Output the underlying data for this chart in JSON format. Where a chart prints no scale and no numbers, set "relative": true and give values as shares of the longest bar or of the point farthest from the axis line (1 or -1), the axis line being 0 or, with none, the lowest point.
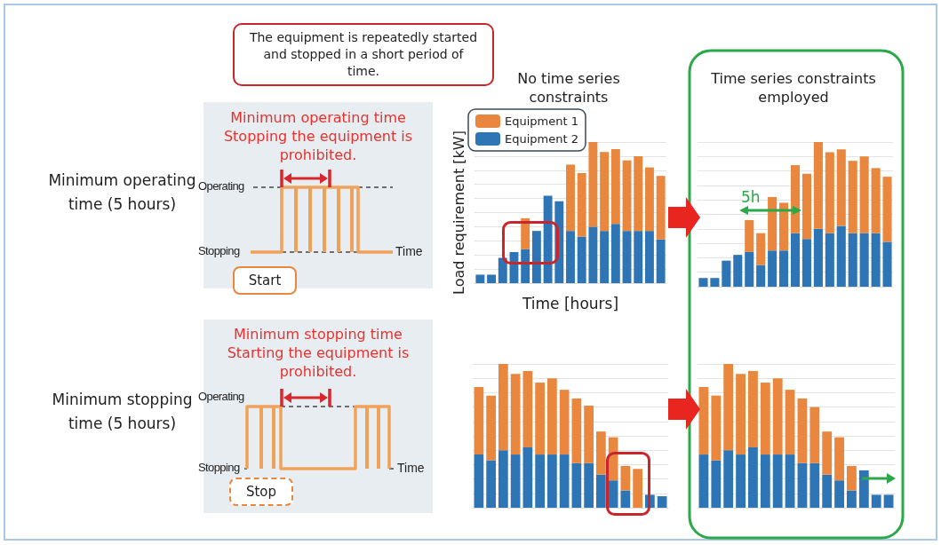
{
  "chart_data": [
    {
      "type": "other",
      "annotations": [
        "Minimum operating time (5 hours)",
        "Minimum operating time",
        "Stopping the equipment is prohibited.",
        "Operating",
        "Stopping",
        "Time",
        "Start"
      ]
    },
    {
      "type": "bar",
      "title": "No time series constraints",
      "xlabel": "Time [hours]",
      "ylabel": "Load requirement [kW]",
      "relative": true,
      "stacked": true,
      "grid": "y",
      "legend": "top left",
      "annotations": [
        "The equipment is repeatedly started and stopped in a short period of time."
      ],
      "categories": [
        null,
        null,
        null,
        null,
        null,
        null,
        null,
        null,
        null,
        null,
        null,
        null,
        null,
        null,
        null,
        null,
        null
      ],
      "series": [
        {
          "name": "Equipment 2",
          "color": "#2e75b6",
          "values": [
            0.06,
            0.06,
            0.18,
            0.22,
            0.24,
            0.37,
            0.62,
            0.58,
            0.37,
            0.33,
            0.4,
            0.37,
            0.42,
            0.37,
            0.37,
            0.37,
            0.31
          ]
        },
        {
          "name": "Equipment 1",
          "color": "#e8873d",
          "values": [
            null,
            null,
            null,
            null,
            0.22,
            null,
            null,
            null,
            0.47,
            0.45,
            0.6,
            0.56,
            0.53,
            0.5,
            0.53,
            0.45,
            0.45
          ]
        }
      ]
    },
    {
      "type": "bar",
      "title": "Time series constraints employed",
      "relative": true,
      "stacked": true,
      "grid": "y",
      "annotations": [
        "5h"
      ],
      "categories": [
        null,
        null,
        null,
        null,
        null,
        null,
        null,
        null,
        null,
        null,
        null,
        null,
        null,
        null,
        null,
        null,
        null
      ],
      "series": [
        {
          "color": "#2e75b6",
          "values": [
            0.06,
            0.06,
            0.18,
            0.22,
            0.24,
            0.15,
            0.25,
            0.25,
            0.37,
            0.33,
            0.4,
            0.37,
            0.42,
            0.37,
            0.37,
            0.37,
            0.31
          ]
        },
        {
          "color": "#e8873d",
          "values": [
            null,
            null,
            null,
            null,
            0.22,
            0.22,
            0.37,
            0.33,
            0.47,
            0.45,
            0.6,
            0.56,
            0.53,
            0.5,
            0.53,
            0.45,
            0.45
          ]
        }
      ]
    },
    {
      "type": "other",
      "annotations": [
        "Minimum stopping time (5 hours)",
        "Minimum stopping time",
        "Starting the equipment is prohibited.",
        "Operating",
        "Stopping",
        "Time",
        "Stop"
      ]
    },
    {
      "type": "bar",
      "relative": true,
      "stacked": true,
      "grid": "y",
      "categories": [
        null,
        null,
        null,
        null,
        null,
        null,
        null,
        null,
        null,
        null,
        null,
        null,
        null,
        null,
        null,
        null
      ],
      "series": [
        {
          "color": "#2e75b6",
          "values": [
            0.37,
            0.33,
            0.4,
            0.37,
            0.42,
            0.37,
            0.37,
            0.37,
            0.31,
            0.31,
            0.23,
            0.19,
            0.12,
            null,
            0.09,
            0.08
          ]
        },
        {
          "color": "#e8873d",
          "values": [
            0.47,
            0.45,
            0.6,
            0.56,
            0.53,
            0.5,
            0.53,
            0.45,
            0.45,
            0.4,
            0.3,
            0.3,
            0.17,
            0.27,
            null,
            null
          ]
        }
      ]
    },
    {
      "type": "bar",
      "relative": true,
      "stacked": true,
      "grid": "y",
      "categories": [
        null,
        null,
        null,
        null,
        null,
        null,
        null,
        null,
        null,
        null,
        null,
        null,
        null,
        null,
        null,
        null
      ],
      "series": [
        {
          "color": "#2e75b6",
          "values": [
            0.37,
            0.33,
            0.4,
            0.37,
            0.42,
            0.37,
            0.37,
            0.37,
            0.31,
            0.31,
            0.23,
            0.19,
            0.12,
            0.26,
            0.09,
            0.09
          ]
        },
        {
          "color": "#e8873d",
          "values": [
            0.47,
            0.45,
            0.6,
            0.56,
            0.53,
            0.5,
            0.53,
            0.45,
            0.45,
            0.39,
            0.3,
            0.3,
            0.17,
            null,
            null,
            null
          ]
        }
      ]
    }
  ]
}
